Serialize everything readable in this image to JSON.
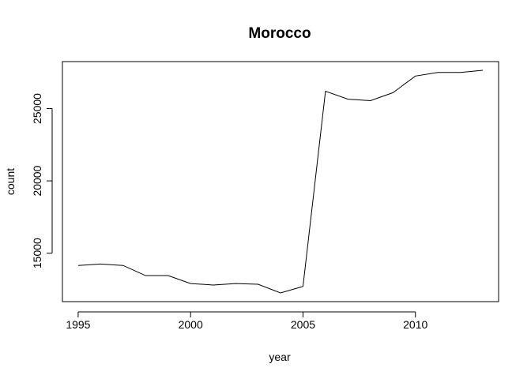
{
  "chart_data": {
    "type": "line",
    "title": "Morocco",
    "xlabel": "year",
    "ylabel": "count",
    "x": [
      1995,
      1996,
      1997,
      1998,
      1999,
      2000,
      2001,
      2002,
      2003,
      2004,
      2005,
      2006,
      2007,
      2008,
      2009,
      2010,
      2011,
      2012,
      2013
    ],
    "series": [
      {
        "values": [
          14150,
          14250,
          14150,
          13450,
          13450,
          12900,
          12800,
          12900,
          12850,
          12250,
          12700,
          26200,
          25650,
          25550,
          26100,
          27250,
          27500,
          27500,
          27650
        ]
      }
    ],
    "xlim": [
      1994.3,
      2013.7
    ],
    "ylim": [
      11650,
      28250
    ],
    "xticks": [
      1995,
      2000,
      2005,
      2010
    ],
    "yticks": [
      15000,
      20000,
      25000
    ],
    "grid": false,
    "line_color": "#000000"
  }
}
